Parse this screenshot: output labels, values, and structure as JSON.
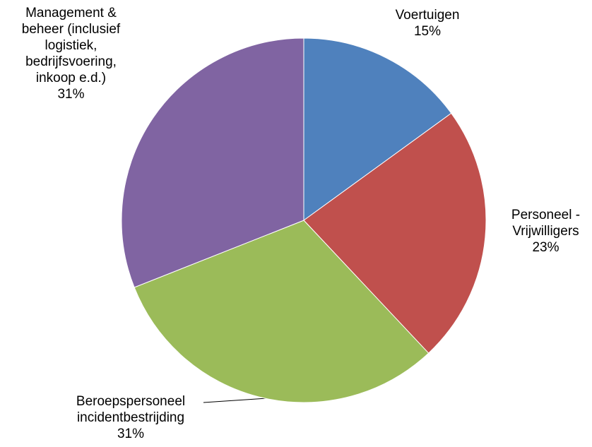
{
  "chart_data": {
    "type": "pie",
    "categories": [
      "Voertuigen",
      "Personeel - Vrijwilligers",
      "Beroepspersoneel incidentbestrijding",
      "Management & beheer (inclusief logistiek, bedrijfsvoering, inkoop e.d.)"
    ],
    "values": [
      15,
      23,
      31,
      31
    ],
    "value_labels": [
      "15%",
      "23%",
      "31%",
      "31%"
    ],
    "colors": [
      "#4f81bd",
      "#c0504d",
      "#9bbb59",
      "#8064a2"
    ]
  }
}
